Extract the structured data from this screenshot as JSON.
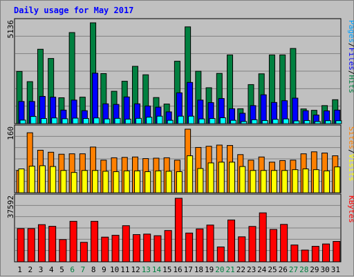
{
  "chart_data": {
    "title": "Daily usage for May 2017",
    "type": "bar",
    "categories": [
      "1",
      "2",
      "3",
      "4",
      "5",
      "6",
      "7",
      "8",
      "9",
      "10",
      "11",
      "12",
      "13",
      "14",
      "15",
      "16",
      "17",
      "18",
      "19",
      "20",
      "21",
      "22",
      "23",
      "24",
      "25",
      "26",
      "27",
      "28",
      "29",
      "30",
      "31"
    ],
    "weekend_days": [
      "6",
      "7",
      "13",
      "14",
      "20",
      "21",
      "27",
      "28"
    ],
    "colors": {
      "pages": "#00ffff",
      "files": "#0000ff",
      "hits": "#008040",
      "sites": "#ffff00",
      "visits": "#ff8000",
      "kbytes": "#ff0000",
      "weekday_label": "#000000",
      "weekend_label": "#008040"
    },
    "panels": [
      {
        "max_label": "5136",
        "legend": [
          {
            "label": "Pages",
            "color": "#00a0ff"
          },
          {
            "label": "/",
            "color": "#000000"
          },
          {
            "label": "Files",
            "color": "#0000ff"
          },
          {
            "label": "/",
            "color": "#000000"
          },
          {
            "label": "Hits",
            "color": "#008040"
          }
        ],
        "ylim": [
          0,
          5136
        ],
        "series": [
          {
            "name": "Hits",
            "values": [
              2660,
              2140,
              3790,
              3320,
              1320,
              4640,
              1350,
              5136,
              2550,
              1650,
              2160,
              2920,
              2490,
              1330,
              1000,
              3180,
              4930,
              2670,
              1830,
              2560,
              3500,
              760,
              1990,
              2540,
              3500,
              3500,
              3830,
              750,
              680,
              920,
              1220
            ]
          },
          {
            "name": "Files",
            "values": [
              1130,
              1130,
              1390,
              1350,
              690,
              1200,
              660,
              2570,
              1010,
              980,
              1360,
              1010,
              900,
              840,
              600,
              1570,
              2100,
              1200,
              1070,
              1280,
              760,
              530,
              920,
              1470,
              1080,
              1170,
              1300,
              660,
              440,
              650,
              690
            ]
          },
          {
            "name": "Pages",
            "values": [
              180,
              370,
              260,
              290,
              250,
              280,
              260,
              290,
              240,
              270,
              230,
              270,
              330,
              380,
              170,
              380,
              380,
              240,
              260,
              300,
              170,
              110,
              200,
              160,
              220,
              240,
              140,
              160,
              110,
              150,
              150
            ]
          }
        ]
      },
      {
        "max_label": "160",
        "legend": [
          {
            "label": "Sites",
            "color": "#ff8000"
          },
          {
            "label": "/",
            "color": "#000000"
          },
          {
            "label": "Visits",
            "color": "#ffff00"
          }
        ],
        "ylim": [
          0,
          160
        ],
        "series": [
          {
            "name": "Sites",
            "values": [
              60,
              67,
              68,
              66,
              56,
              51,
              56,
              56,
              54,
              53,
              55,
              55,
              53,
              55,
              54,
              53,
              93,
              61,
              75,
              77,
              77,
              66,
              56,
              56,
              56,
              56,
              58,
              60,
              58,
              55,
              65
            ]
          },
          {
            "name": "Visits",
            "values": [
              56,
              151,
              107,
              102,
              97,
              98,
              98,
              115,
              82,
              88,
              89,
              90,
              86,
              87,
              88,
              82,
              160,
              114,
              117,
              120,
              119,
              96,
              82,
              90,
              77,
              81,
              82,
              98,
              103,
              100,
              93
            ]
          }
        ]
      },
      {
        "max_label": "37592",
        "legend": [
          {
            "label": "KBytes",
            "color": "#ff0000"
          }
        ],
        "ylim": [
          0,
          37592
        ],
        "series": [
          {
            "name": "KBytes",
            "values": [
              19650,
              19650,
              21980,
              21000,
              13150,
              23960,
              11530,
              23960,
              14610,
              15690,
              21370,
              16110,
              16400,
              15440,
              18510,
              37592,
              17020,
              19460,
              21740,
              8790,
              24750,
              14790,
              20930,
              28960,
              19150,
              22130,
              9950,
              6950,
              9170,
              10560,
              12060
            ]
          }
        ]
      }
    ]
  }
}
